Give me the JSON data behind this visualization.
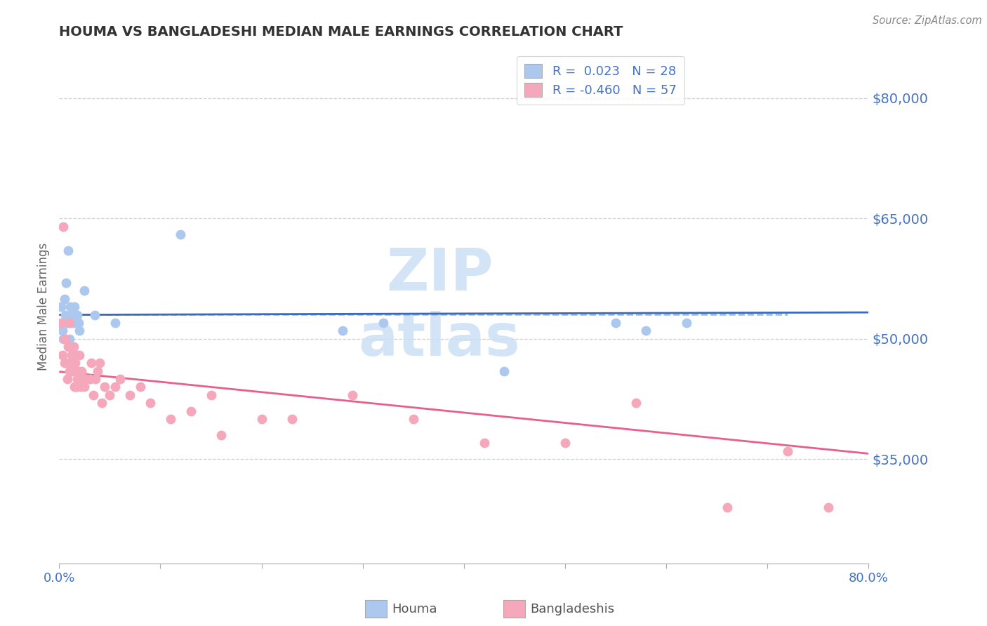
{
  "title": "HOUMA VS BANGLADESHI MEDIAN MALE EARNINGS CORRELATION CHART",
  "source": "Source: ZipAtlas.com",
  "ylabel": "Median Male Earnings",
  "xlim": [
    0.0,
    0.8
  ],
  "ylim": [
    22000,
    86000
  ],
  "yticks": [
    35000,
    50000,
    65000,
    80000
  ],
  "ytick_labels": [
    "$35,000",
    "$50,000",
    "$65,000",
    "$80,000"
  ],
  "houma_color": "#adc8ee",
  "bangladeshi_color": "#f5a8bb",
  "houma_R": 0.023,
  "houma_N": 28,
  "bangladeshi_R": -0.46,
  "bangladeshi_N": 57,
  "legend_label_houma": "Houma",
  "legend_label_bangladeshi": "Bangladeshis",
  "houma_line_color": "#3a6abf",
  "bangladeshi_line_color": "#e8608a",
  "houma_dash_color": "#90bce8",
  "grid_color": "#d0d0d0",
  "title_color": "#333333",
  "axis_label_color": "#666666",
  "ytick_color": "#4472c4",
  "source_color": "#888888",
  "watermark_color": "#cce0f5",
  "houma_x": [
    0.002,
    0.003,
    0.004,
    0.005,
    0.006,
    0.007,
    0.008,
    0.009,
    0.01,
    0.011,
    0.012,
    0.013,
    0.014,
    0.015,
    0.016,
    0.018,
    0.019,
    0.02,
    0.025,
    0.035,
    0.055,
    0.12,
    0.28,
    0.32,
    0.44,
    0.55,
    0.58,
    0.62
  ],
  "houma_y": [
    54000,
    51000,
    50000,
    55000,
    53000,
    57000,
    52000,
    61000,
    50000,
    54000,
    53000,
    52000,
    53000,
    54000,
    52000,
    53000,
    52000,
    51000,
    56000,
    53000,
    52000,
    63000,
    51000,
    52000,
    46000,
    52000,
    51000,
    52000
  ],
  "bangladeshi_x": [
    0.002,
    0.003,
    0.004,
    0.005,
    0.005,
    0.006,
    0.007,
    0.008,
    0.009,
    0.01,
    0.01,
    0.011,
    0.012,
    0.013,
    0.013,
    0.014,
    0.015,
    0.015,
    0.016,
    0.017,
    0.018,
    0.018,
    0.019,
    0.02,
    0.021,
    0.022,
    0.024,
    0.025,
    0.027,
    0.03,
    0.032,
    0.034,
    0.036,
    0.038,
    0.04,
    0.042,
    0.045,
    0.05,
    0.055,
    0.06,
    0.07,
    0.08,
    0.09,
    0.11,
    0.13,
    0.15,
    0.16,
    0.2,
    0.23,
    0.29,
    0.35,
    0.42,
    0.5,
    0.57,
    0.66,
    0.72,
    0.76
  ],
  "bangladeshi_y": [
    52000,
    48000,
    64000,
    50000,
    47000,
    50000,
    47000,
    45000,
    49000,
    52000,
    46000,
    47000,
    48000,
    46000,
    48000,
    49000,
    44000,
    47000,
    47000,
    44000,
    48000,
    45000,
    46000,
    48000,
    44000,
    46000,
    45000,
    44000,
    45000,
    45000,
    47000,
    43000,
    45000,
    46000,
    47000,
    42000,
    44000,
    43000,
    44000,
    45000,
    43000,
    44000,
    42000,
    40000,
    41000,
    43000,
    38000,
    40000,
    40000,
    43000,
    40000,
    37000,
    37000,
    42000,
    29000,
    36000,
    29000
  ]
}
